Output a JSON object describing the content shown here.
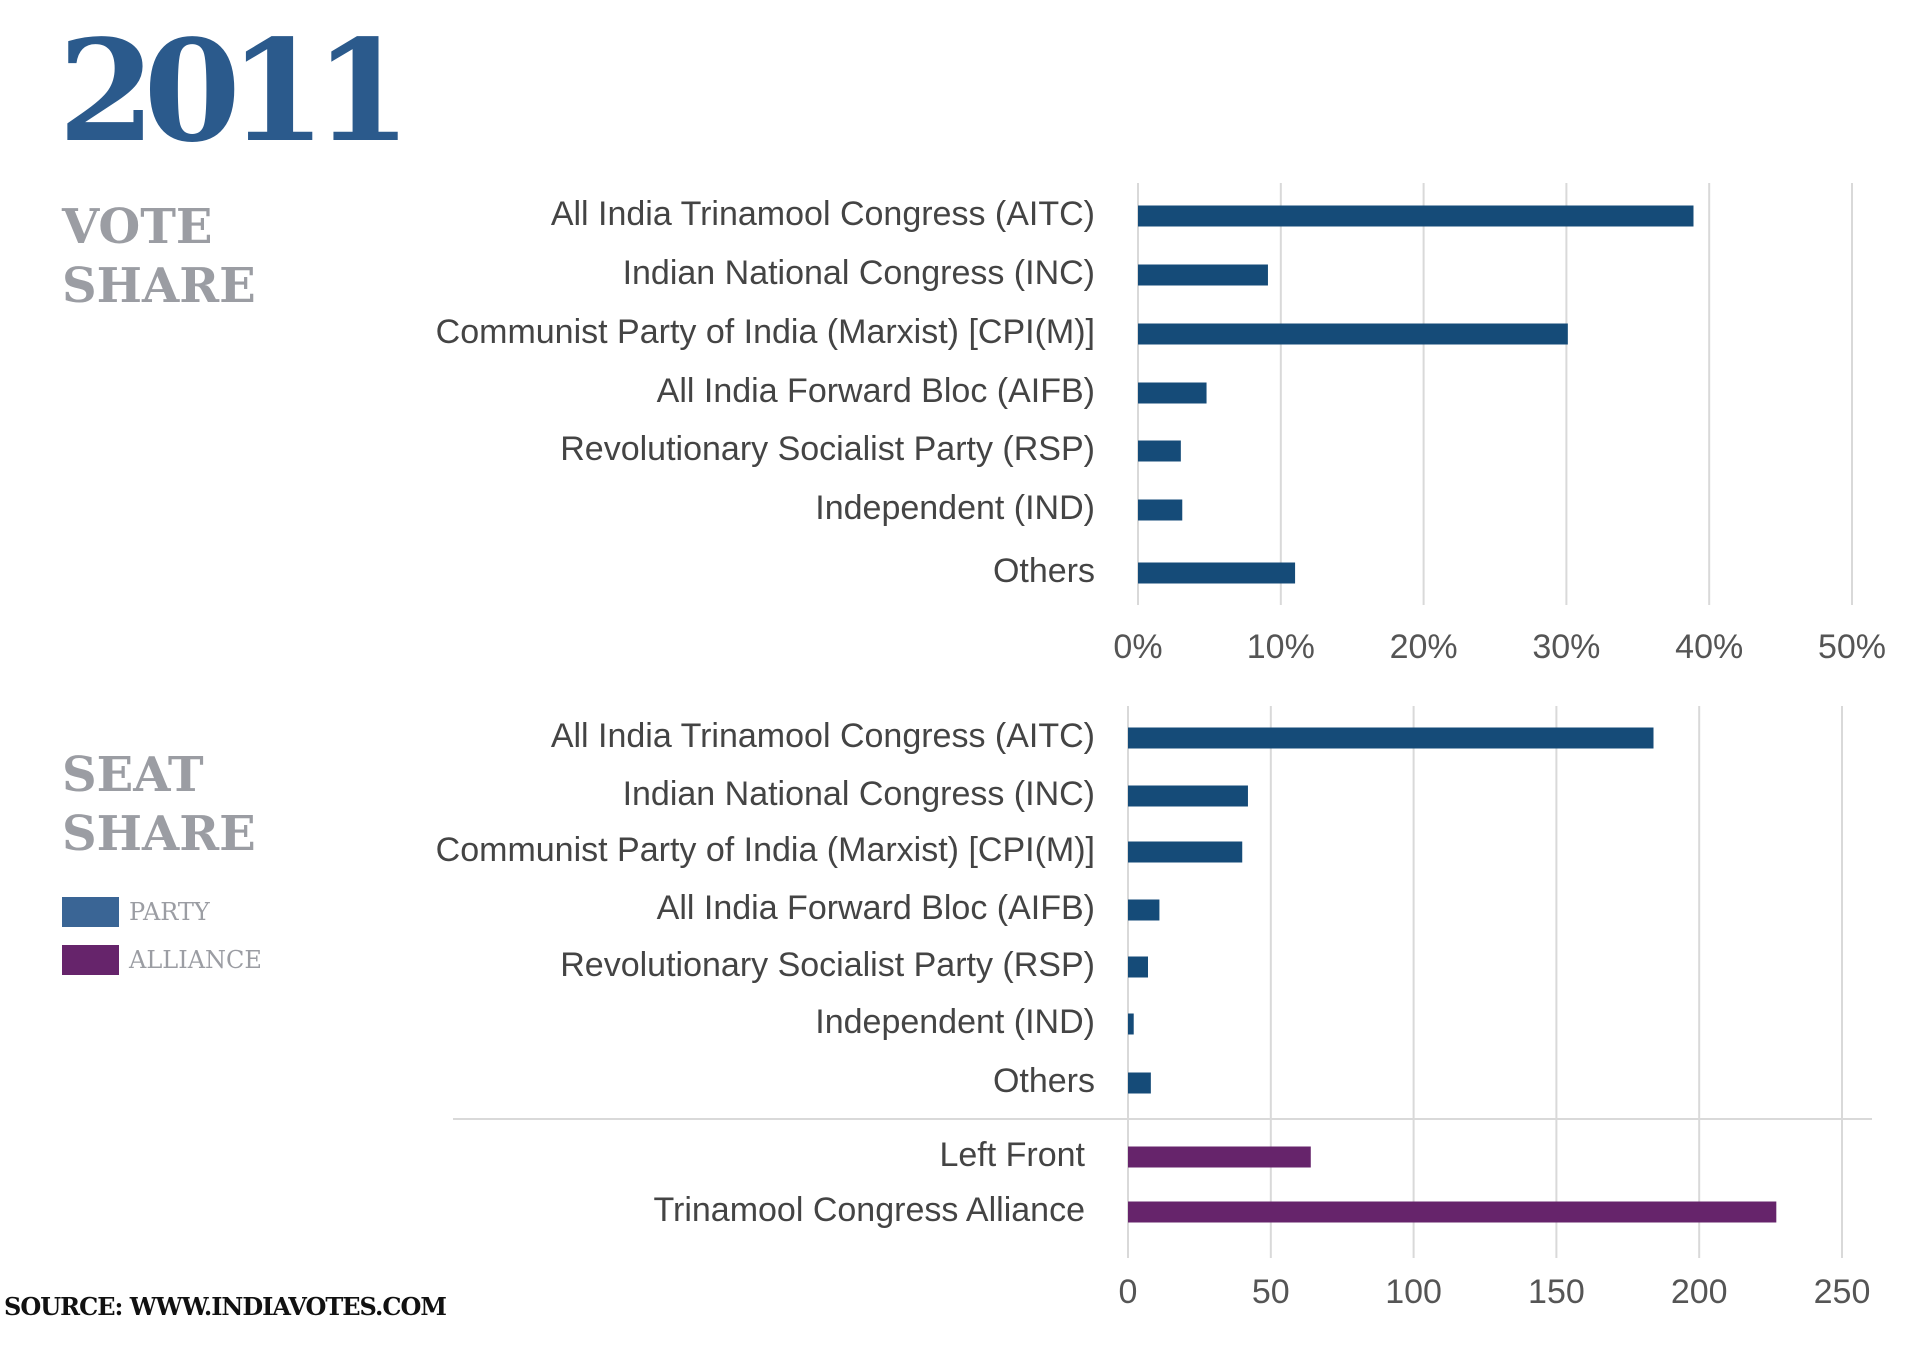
{
  "header": {
    "year": "2011"
  },
  "sections": {
    "vote_share": [
      "VOTE",
      "SHARE"
    ],
    "seat_share": [
      "SEAT",
      "SHARE"
    ]
  },
  "legend": [
    {
      "label": "PARTY",
      "color": "#3a6595"
    },
    {
      "label": "ALLIANCE",
      "color": "#66246b"
    }
  ],
  "footer": {
    "source": "SOURCE: WWW.INDIAVOTES.COM"
  },
  "colors": {
    "party_bar": "#154b78",
    "alliance_bar": "#66246b",
    "grid": "#d9d9d9"
  },
  "chart_data": [
    {
      "type": "bar",
      "orientation": "horizontal",
      "title": "",
      "categories": [
        "All India Trinamool Congress (AITC)",
        "Indian National Congress (INC)",
        "Communist Party of India (Marxist) [CPI(M)]",
        "All India Forward Bloc (AIFB)",
        "Revolutionary Socialist Party (RSP)",
        "Independent (IND)",
        "Others"
      ],
      "values": [
        38.9,
        9.1,
        30.1,
        4.8,
        3.0,
        3.1,
        11.0
      ],
      "xlim": [
        0,
        50
      ],
      "xticks": [
        "0%",
        "10%",
        "20%",
        "30%",
        "40%",
        "50%"
      ],
      "grid": true
    },
    {
      "type": "bar",
      "orientation": "horizontal",
      "title": "",
      "categories": [
        "All India Trinamool Congress (AITC)",
        "Indian National Congress (INC)",
        "Communist Party of India (Marxist) [CPI(M)]",
        "All India Forward Bloc (AIFB)",
        "Revolutionary Socialist Party (RSP)",
        "Independent (IND)",
        "Others"
      ],
      "values": [
        184,
        42,
        40,
        11,
        7,
        2,
        8
      ],
      "alliance_categories": [
        "Left Front",
        "Trinamool Congress Alliance"
      ],
      "alliance_values": [
        64,
        227
      ],
      "xlim": [
        0,
        250
      ],
      "xticks": [
        "0",
        "50",
        "100",
        "150",
        "200",
        "250"
      ],
      "grid": true
    }
  ]
}
